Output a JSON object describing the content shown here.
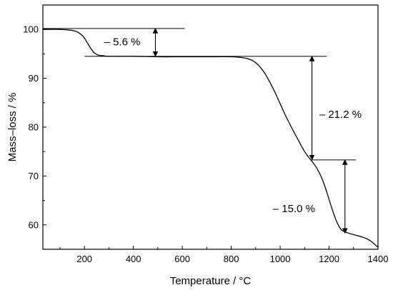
{
  "chart_data": {
    "type": "line",
    "title": "",
    "xlabel": "Temperature / °C",
    "ylabel": "Mass–loss / %",
    "xlim": [
      30,
      1400
    ],
    "ylim": [
      55,
      105
    ],
    "xticks": [
      200,
      400,
      600,
      800,
      1000,
      1200,
      1400
    ],
    "yticks": [
      60,
      70,
      80,
      90,
      100
    ],
    "xtick_labels": [
      "200",
      "400",
      "600",
      "800",
      "1000",
      "1200",
      "1400"
    ],
    "ytick_labels": [
      "60",
      "70",
      "80",
      "90",
      "100"
    ],
    "grid": false,
    "legend": "none",
    "series": [
      {
        "color": "#000000",
        "x": [
          30,
          100,
          150,
          170,
          190,
          200,
          210,
          220,
          230,
          240,
          250,
          260,
          280,
          300,
          400,
          500,
          600,
          700,
          800,
          850,
          880,
          900,
          920,
          940,
          960,
          980,
          1000,
          1020,
          1050,
          1080,
          1100,
          1120,
          1130,
          1150,
          1170,
          1190,
          1210,
          1230,
          1250,
          1280,
          1300,
          1330,
          1360,
          1380,
          1400
        ],
        "y": [
          100.0,
          100.0,
          99.8,
          99.5,
          98.8,
          98.2,
          97.4,
          96.6,
          95.8,
          95.2,
          94.9,
          94.7,
          94.6,
          94.5,
          94.5,
          94.4,
          94.4,
          94.4,
          94.4,
          94.2,
          93.8,
          93.2,
          92.2,
          90.8,
          89.0,
          87.0,
          84.8,
          82.6,
          79.6,
          76.8,
          75.0,
          73.6,
          73.0,
          71.6,
          69.6,
          66.8,
          63.6,
          60.8,
          59.0,
          58.3,
          58.0,
          57.6,
          57.0,
          56.3,
          55.4
        ]
      }
    ],
    "reference_lines": [
      {
        "x1": 30,
        "x2": 610,
        "y": 100.2
      },
      {
        "x1": 200,
        "x2": 1190,
        "y": 94.5
      },
      {
        "x1": 1130,
        "x2": 1310,
        "y": 73.3
      }
    ],
    "arrows": [
      {
        "x": 490,
        "y1": 100.2,
        "y2": 94.5,
        "label": "– 5.6 %",
        "label_x": 280,
        "label_y": 97.5
      },
      {
        "x": 1130,
        "y1": 94.5,
        "y2": 73.3,
        "label": "– 21.2 %",
        "label_x": 1160,
        "label_y": 82.6
      },
      {
        "x": 1265,
        "y1": 73.3,
        "y2": 58.3,
        "label": "– 15.0 %",
        "label_x": 970,
        "label_y": 63.3
      }
    ]
  }
}
